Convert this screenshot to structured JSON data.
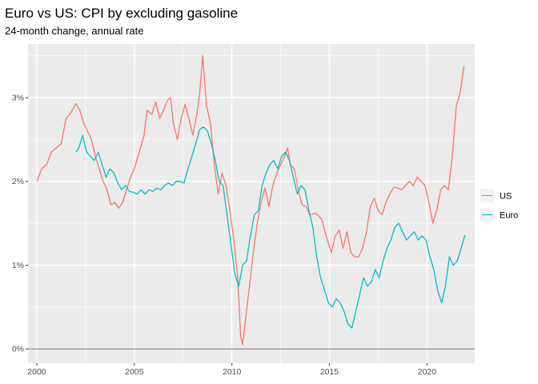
{
  "chart_data": {
    "type": "line",
    "title": "Euro vs US: CPI by excluding gasoline",
    "subtitle": "24-month change, annual rate",
    "xlabel": "",
    "ylabel": "",
    "xlim": [
      1999.55,
      2022.45
    ],
    "ylim": [
      -0.17,
      3.64
    ],
    "x_ticks": [
      2000,
      2005,
      2010,
      2015,
      2020
    ],
    "x_tick_labels": [
      "2000",
      "2005",
      "2010",
      "2015",
      "2020"
    ],
    "y_ticks": [
      0,
      1,
      2,
      3
    ],
    "y_tick_labels": [
      "0%",
      "1%",
      "2%",
      "3%"
    ],
    "hline": 0,
    "grid": true,
    "legend_position": "right",
    "series": [
      {
        "name": "US",
        "color": "#F8766D",
        "points": [
          [
            2000.0,
            2.0
          ],
          [
            2000.25,
            2.15
          ],
          [
            2000.5,
            2.2
          ],
          [
            2000.75,
            2.35
          ],
          [
            2001.0,
            2.4
          ],
          [
            2001.25,
            2.45
          ],
          [
            2001.5,
            2.75
          ],
          [
            2001.75,
            2.82
          ],
          [
            2002.0,
            2.93
          ],
          [
            2002.2,
            2.85
          ],
          [
            2002.4,
            2.7
          ],
          [
            2002.6,
            2.6
          ],
          [
            2002.8,
            2.5
          ],
          [
            2003.0,
            2.3
          ],
          [
            2003.2,
            2.15
          ],
          [
            2003.4,
            2.0
          ],
          [
            2003.6,
            1.9
          ],
          [
            2003.8,
            1.72
          ],
          [
            2004.0,
            1.75
          ],
          [
            2004.2,
            1.68
          ],
          [
            2004.4,
            1.75
          ],
          [
            2004.6,
            1.9
          ],
          [
            2004.8,
            2.05
          ],
          [
            2005.0,
            2.15
          ],
          [
            2005.25,
            2.35
          ],
          [
            2005.5,
            2.55
          ],
          [
            2005.65,
            2.85
          ],
          [
            2005.9,
            2.8
          ],
          [
            2006.1,
            2.95
          ],
          [
            2006.3,
            2.75
          ],
          [
            2006.5,
            2.85
          ],
          [
            2006.7,
            2.97
          ],
          [
            2006.85,
            3.0
          ],
          [
            2007.0,
            2.7
          ],
          [
            2007.2,
            2.5
          ],
          [
            2007.4,
            2.75
          ],
          [
            2007.6,
            2.92
          ],
          [
            2007.8,
            2.75
          ],
          [
            2008.0,
            2.55
          ],
          [
            2008.2,
            2.8
          ],
          [
            2008.35,
            3.05
          ],
          [
            2008.5,
            3.5
          ],
          [
            2008.7,
            2.9
          ],
          [
            2008.9,
            2.7
          ],
          [
            2009.1,
            2.2
          ],
          [
            2009.3,
            1.85
          ],
          [
            2009.5,
            2.1
          ],
          [
            2009.7,
            1.95
          ],
          [
            2009.9,
            1.65
          ],
          [
            2010.1,
            1.3
          ],
          [
            2010.3,
            0.85
          ],
          [
            2010.45,
            0.15
          ],
          [
            2010.55,
            0.05
          ],
          [
            2010.7,
            0.35
          ],
          [
            2010.9,
            0.75
          ],
          [
            2011.1,
            1.15
          ],
          [
            2011.3,
            1.5
          ],
          [
            2011.5,
            1.75
          ],
          [
            2011.7,
            1.92
          ],
          [
            2011.9,
            1.7
          ],
          [
            2012.1,
            1.95
          ],
          [
            2012.3,
            2.1
          ],
          [
            2012.5,
            2.2
          ],
          [
            2012.7,
            2.3
          ],
          [
            2012.85,
            2.4
          ],
          [
            2013.0,
            2.2
          ],
          [
            2013.2,
            2.15
          ],
          [
            2013.4,
            1.9
          ],
          [
            2013.6,
            1.72
          ],
          [
            2013.8,
            1.7
          ],
          [
            2014.0,
            1.6
          ],
          [
            2014.3,
            1.62
          ],
          [
            2014.6,
            1.55
          ],
          [
            2014.9,
            1.3
          ],
          [
            2015.1,
            1.15
          ],
          [
            2015.3,
            1.35
          ],
          [
            2015.5,
            1.42
          ],
          [
            2015.7,
            1.2
          ],
          [
            2015.9,
            1.4
          ],
          [
            2016.1,
            1.15
          ],
          [
            2016.3,
            1.1
          ],
          [
            2016.5,
            1.1
          ],
          [
            2016.7,
            1.2
          ],
          [
            2016.9,
            1.4
          ],
          [
            2017.1,
            1.7
          ],
          [
            2017.3,
            1.8
          ],
          [
            2017.5,
            1.65
          ],
          [
            2017.7,
            1.6
          ],
          [
            2017.9,
            1.75
          ],
          [
            2018.1,
            1.85
          ],
          [
            2018.3,
            1.93
          ],
          [
            2018.5,
            1.92
          ],
          [
            2018.7,
            1.9
          ],
          [
            2018.9,
            1.95
          ],
          [
            2019.1,
            2.0
          ],
          [
            2019.3,
            1.95
          ],
          [
            2019.5,
            2.05
          ],
          [
            2019.7,
            2.0
          ],
          [
            2019.9,
            1.95
          ],
          [
            2020.1,
            1.75
          ],
          [
            2020.3,
            1.5
          ],
          [
            2020.5,
            1.65
          ],
          [
            2020.7,
            1.9
          ],
          [
            2020.9,
            1.95
          ],
          [
            2021.1,
            1.9
          ],
          [
            2021.3,
            2.3
          ],
          [
            2021.5,
            2.9
          ],
          [
            2021.7,
            3.05
          ],
          [
            2021.9,
            3.38
          ]
        ]
      },
      {
        "name": "Euro",
        "color": "#00BFC4",
        "points": [
          [
            2002.0,
            2.35
          ],
          [
            2002.15,
            2.4
          ],
          [
            2002.35,
            2.55
          ],
          [
            2002.55,
            2.35
          ],
          [
            2002.75,
            2.3
          ],
          [
            2002.95,
            2.25
          ],
          [
            2003.15,
            2.35
          ],
          [
            2003.35,
            2.2
          ],
          [
            2003.55,
            2.05
          ],
          [
            2003.75,
            2.15
          ],
          [
            2003.95,
            2.1
          ],
          [
            2004.15,
            1.98
          ],
          [
            2004.35,
            1.9
          ],
          [
            2004.55,
            1.95
          ],
          [
            2004.75,
            1.88
          ],
          [
            2004.95,
            1.87
          ],
          [
            2005.15,
            1.85
          ],
          [
            2005.35,
            1.9
          ],
          [
            2005.55,
            1.85
          ],
          [
            2005.75,
            1.9
          ],
          [
            2005.95,
            1.88
          ],
          [
            2006.15,
            1.92
          ],
          [
            2006.35,
            1.9
          ],
          [
            2006.55,
            1.95
          ],
          [
            2006.75,
            1.98
          ],
          [
            2006.95,
            1.95
          ],
          [
            2007.15,
            2.0
          ],
          [
            2007.35,
            2.0
          ],
          [
            2007.55,
            1.98
          ],
          [
            2007.75,
            2.15
          ],
          [
            2007.95,
            2.3
          ],
          [
            2008.15,
            2.45
          ],
          [
            2008.35,
            2.62
          ],
          [
            2008.55,
            2.65
          ],
          [
            2008.75,
            2.6
          ],
          [
            2008.95,
            2.45
          ],
          [
            2009.15,
            2.25
          ],
          [
            2009.35,
            2.0
          ],
          [
            2009.55,
            1.95
          ],
          [
            2009.75,
            1.6
          ],
          [
            2009.95,
            1.25
          ],
          [
            2010.15,
            0.9
          ],
          [
            2010.35,
            0.75
          ],
          [
            2010.55,
            1.0
          ],
          [
            2010.75,
            1.05
          ],
          [
            2010.95,
            1.35
          ],
          [
            2011.15,
            1.6
          ],
          [
            2011.35,
            1.65
          ],
          [
            2011.55,
            1.95
          ],
          [
            2011.75,
            2.1
          ],
          [
            2011.95,
            2.2
          ],
          [
            2012.15,
            2.25
          ],
          [
            2012.35,
            2.15
          ],
          [
            2012.55,
            2.3
          ],
          [
            2012.75,
            2.35
          ],
          [
            2012.95,
            2.25
          ],
          [
            2013.15,
            2.05
          ],
          [
            2013.35,
            1.85
          ],
          [
            2013.55,
            1.95
          ],
          [
            2013.75,
            1.9
          ],
          [
            2013.95,
            1.65
          ],
          [
            2014.15,
            1.45
          ],
          [
            2014.35,
            1.1
          ],
          [
            2014.55,
            0.85
          ],
          [
            2014.75,
            0.7
          ],
          [
            2014.95,
            0.55
          ],
          [
            2015.15,
            0.5
          ],
          [
            2015.35,
            0.6
          ],
          [
            2015.55,
            0.55
          ],
          [
            2015.75,
            0.45
          ],
          [
            2015.95,
            0.3
          ],
          [
            2016.15,
            0.25
          ],
          [
            2016.35,
            0.45
          ],
          [
            2016.55,
            0.65
          ],
          [
            2016.75,
            0.85
          ],
          [
            2016.95,
            0.75
          ],
          [
            2017.15,
            0.8
          ],
          [
            2017.35,
            0.95
          ],
          [
            2017.55,
            0.85
          ],
          [
            2017.75,
            1.05
          ],
          [
            2017.95,
            1.2
          ],
          [
            2018.15,
            1.3
          ],
          [
            2018.35,
            1.45
          ],
          [
            2018.55,
            1.5
          ],
          [
            2018.75,
            1.4
          ],
          [
            2018.95,
            1.3
          ],
          [
            2019.15,
            1.35
          ],
          [
            2019.35,
            1.4
          ],
          [
            2019.55,
            1.3
          ],
          [
            2019.75,
            1.35
          ],
          [
            2019.95,
            1.3
          ],
          [
            2020.15,
            1.1
          ],
          [
            2020.35,
            0.95
          ],
          [
            2020.55,
            0.7
          ],
          [
            2020.75,
            0.55
          ],
          [
            2020.95,
            0.75
          ],
          [
            2021.15,
            1.1
          ],
          [
            2021.35,
            1.0
          ],
          [
            2021.55,
            1.05
          ],
          [
            2021.75,
            1.2
          ],
          [
            2021.95,
            1.36
          ]
        ]
      }
    ]
  }
}
